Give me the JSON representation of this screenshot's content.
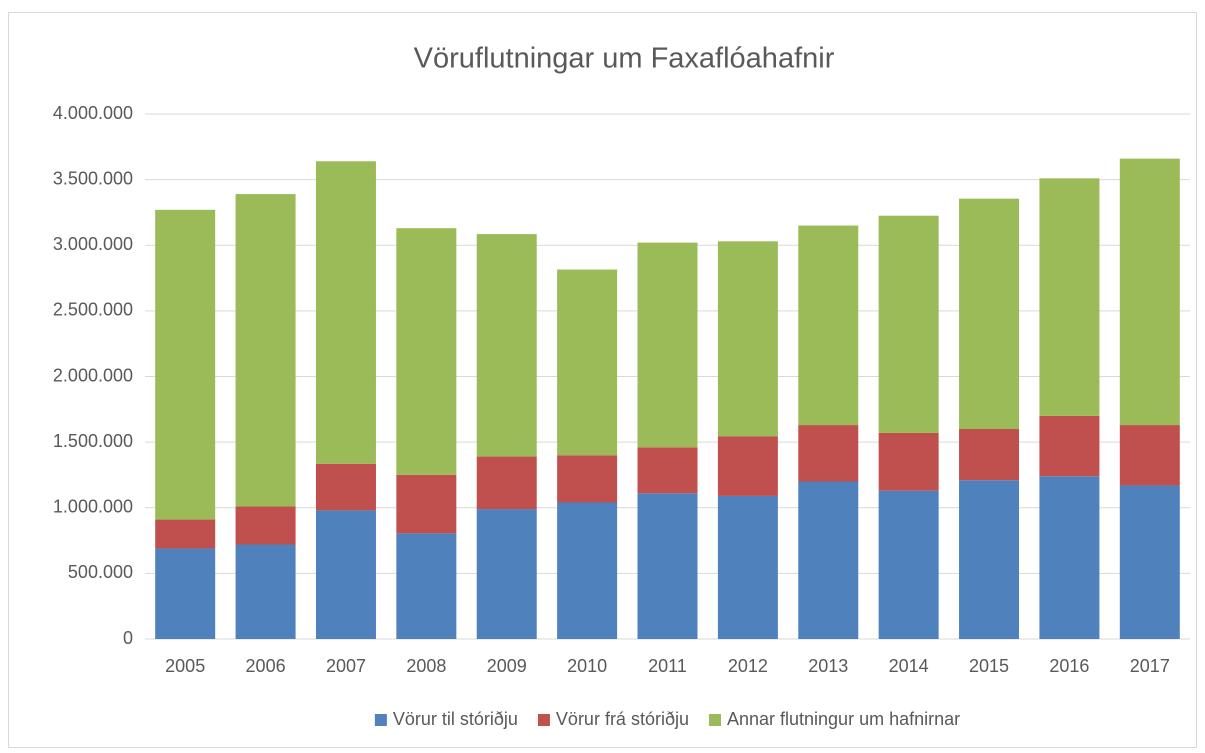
{
  "chart_data": {
    "type": "stacked_bar",
    "title": "Vöruflutningar um Faxaflóahafnir",
    "categories": [
      "2005",
      "2006",
      "2007",
      "2008",
      "2009",
      "2010",
      "2011",
      "2012",
      "2013",
      "2014",
      "2015",
      "2016",
      "2017"
    ],
    "series": [
      {
        "name": "Vörur til stóriðju",
        "color": "#4f81bd",
        "values": [
          690000,
          720000,
          980000,
          805000,
          990000,
          1040000,
          1110000,
          1090000,
          1200000,
          1130000,
          1210000,
          1240000,
          1170000
        ]
      },
      {
        "name": "Vörur frá stóriðju",
        "color": "#c0504d",
        "values": [
          220000,
          290000,
          355000,
          445000,
          400000,
          360000,
          350000,
          455000,
          430000,
          440000,
          390000,
          460000,
          460000
        ]
      },
      {
        "name": "Annar flutningur um hafnirnar",
        "color": "#9bbb59",
        "values": [
          2360000,
          2380000,
          2305000,
          1880000,
          1695000,
          1415000,
          1560000,
          1485000,
          1520000,
          1655000,
          1755000,
          1810000,
          2030000
        ]
      }
    ],
    "ylim": [
      0,
      4000000
    ],
    "yticks": [
      0,
      {
        "value": 500000,
        "label": "500.000"
      },
      {
        "value": 1000000,
        "label": "1.000.000"
      },
      {
        "value": 1500000,
        "label": "1.500.000"
      },
      {
        "value": 2000000,
        "label": "2.000.000"
      },
      {
        "value": 2500000,
        "label": "2.500.000"
      },
      {
        "value": 3000000,
        "label": "3.000.000"
      },
      {
        "value": 3500000,
        "label": "3.500.000"
      },
      {
        "value": 4000000,
        "label": "4.000.000"
      }
    ],
    "grid": true,
    "legend": "bottom"
  }
}
